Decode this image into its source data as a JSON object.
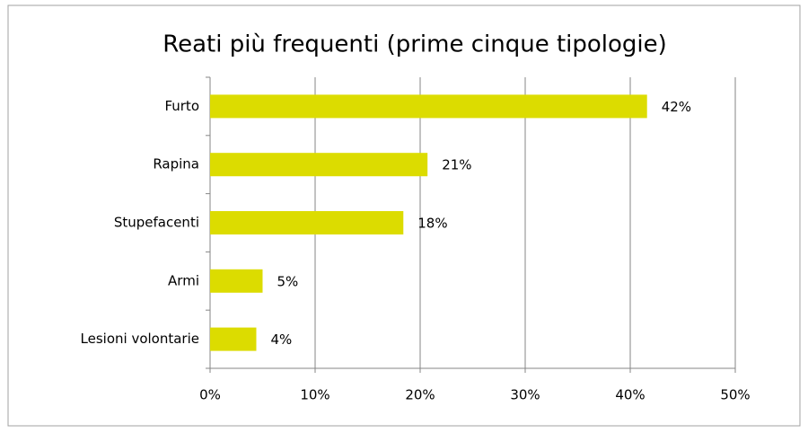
{
  "chart_data": {
    "type": "bar",
    "orientation": "horizontal",
    "title": "Reati più frequenti (prime cinque tipologie)",
    "categories": [
      "Furto",
      "Rapina",
      "Stupefacenti",
      "Armi",
      "Lesioni volontarie"
    ],
    "values": [
      41.6,
      20.7,
      18.4,
      5.0,
      4.4
    ],
    "value_labels": [
      "42%",
      "21%",
      "18%",
      "5%",
      "4%"
    ],
    "color": "#dcdc00",
    "xlim": [
      0,
      50
    ],
    "xticks": [
      {
        "value": 0,
        "label": "0%"
      },
      {
        "value": 10,
        "label": "10%"
      },
      {
        "value": 20,
        "label": "20%"
      },
      {
        "value": 30,
        "label": "30%"
      },
      {
        "value": 40,
        "label": "40%"
      },
      {
        "value": 50,
        "label": "50%"
      }
    ],
    "grid": true
  }
}
